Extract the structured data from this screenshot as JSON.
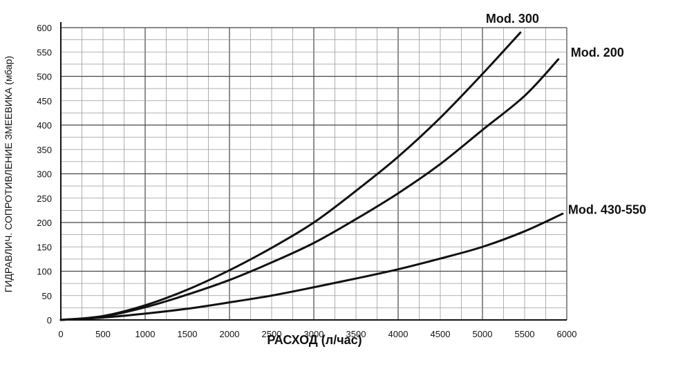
{
  "chart_data": {
    "type": "line",
    "title": "",
    "xlabel": "РАСХОД (л/час)",
    "ylabel": "ГИДРАВЛИЧ. СОПРОТИВЛЕНИЕ ЗМЕЕВИКА (мбар)",
    "xlim": [
      0,
      6000
    ],
    "ylim": [
      0,
      600
    ],
    "x_ticks": [
      0,
      500,
      1000,
      1500,
      2000,
      2500,
      3000,
      3500,
      4000,
      4500,
      5000,
      5500,
      6000
    ],
    "y_ticks": [
      0,
      50,
      100,
      150,
      200,
      250,
      300,
      350,
      400,
      450,
      500,
      550,
      600
    ],
    "grid": true,
    "line_color": "#111111",
    "grid_major_color": "#444444",
    "grid_minor_color": "#9a9a9a",
    "series": [
      {
        "name": "Mod. 300",
        "x": [
          0,
          500,
          1000,
          1500,
          2000,
          2500,
          3000,
          3500,
          4000,
          4500,
          5000,
          5450
        ],
        "y": [
          0,
          8,
          30,
          62,
          102,
          148,
          200,
          265,
          335,
          415,
          505,
          590
        ]
      },
      {
        "name": "Mod. 200",
        "x": [
          0,
          500,
          1000,
          1500,
          2000,
          2500,
          3000,
          3500,
          4000,
          4500,
          5000,
          5500,
          5900
        ],
        "y": [
          0,
          7,
          26,
          52,
          82,
          118,
          158,
          207,
          260,
          320,
          390,
          460,
          535
        ]
      },
      {
        "name": "Mod. 430-550",
        "x": [
          0,
          500,
          1000,
          1500,
          2000,
          2500,
          3000,
          3500,
          4000,
          4500,
          5000,
          5500,
          5950
        ],
        "y": [
          0,
          5,
          13,
          23,
          36,
          50,
          67,
          85,
          104,
          126,
          150,
          182,
          218
        ]
      }
    ]
  }
}
